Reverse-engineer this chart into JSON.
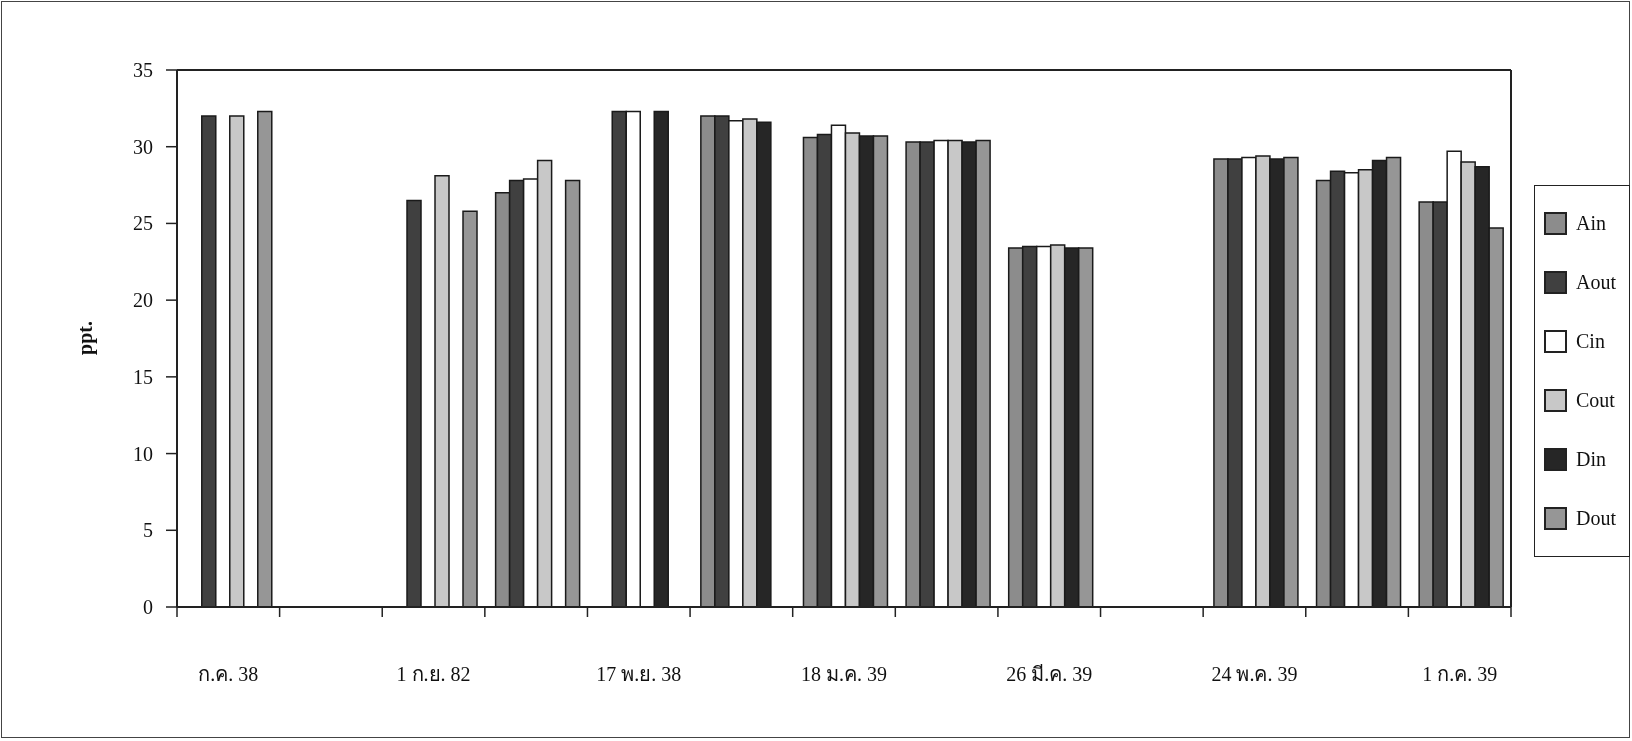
{
  "chart_data": {
    "type": "bar",
    "ylabel": "ppt.",
    "categories": [
      "ก.ค. 38",
      null,
      "1 ก.ย. 82",
      null,
      "17 พ.ย. 38",
      null,
      "18 ม.ค. 39",
      null,
      "26 มี.ค. 39",
      null,
      "24 พ.ค. 39",
      null,
      "1 ก.ค. 39"
    ],
    "series": [
      {
        "name": "Ain",
        "color": "#8c8c8c",
        "values": [
          null,
          null,
          null,
          27.0,
          null,
          32.0,
          30.6,
          30.3,
          23.4,
          null,
          29.2,
          27.8,
          26.4
        ]
      },
      {
        "name": "Aout",
        "color": "#404040",
        "values": [
          32.0,
          null,
          26.5,
          27.8,
          32.3,
          32.0,
          30.8,
          30.3,
          23.5,
          null,
          29.2,
          28.4,
          26.4
        ]
      },
      {
        "name": "Cin",
        "color": "#ffffff",
        "values": [
          null,
          null,
          null,
          27.9,
          32.3,
          31.7,
          31.4,
          30.4,
          23.5,
          null,
          29.3,
          28.3,
          29.7
        ]
      },
      {
        "name": "Cout",
        "color": "#c8c8c8",
        "values": [
          32.0,
          null,
          28.1,
          29.1,
          null,
          31.8,
          30.9,
          30.4,
          23.6,
          null,
          29.4,
          28.5,
          29.0
        ]
      },
      {
        "name": "Din",
        "color": "#262626",
        "values": [
          null,
          null,
          null,
          null,
          32.3,
          31.6,
          30.7,
          30.3,
          23.4,
          null,
          29.2,
          29.1,
          28.7
        ]
      },
      {
        "name": "Dout",
        "color": "#969696",
        "values": [
          32.3,
          null,
          25.8,
          27.8,
          null,
          null,
          30.7,
          30.4,
          23.4,
          null,
          29.3,
          29.3,
          24.7
        ]
      }
    ],
    "ylim": [
      0,
      35
    ],
    "yticks": [
      0,
      5,
      10,
      15,
      20,
      25,
      30,
      35
    ],
    "legend": "right"
  }
}
